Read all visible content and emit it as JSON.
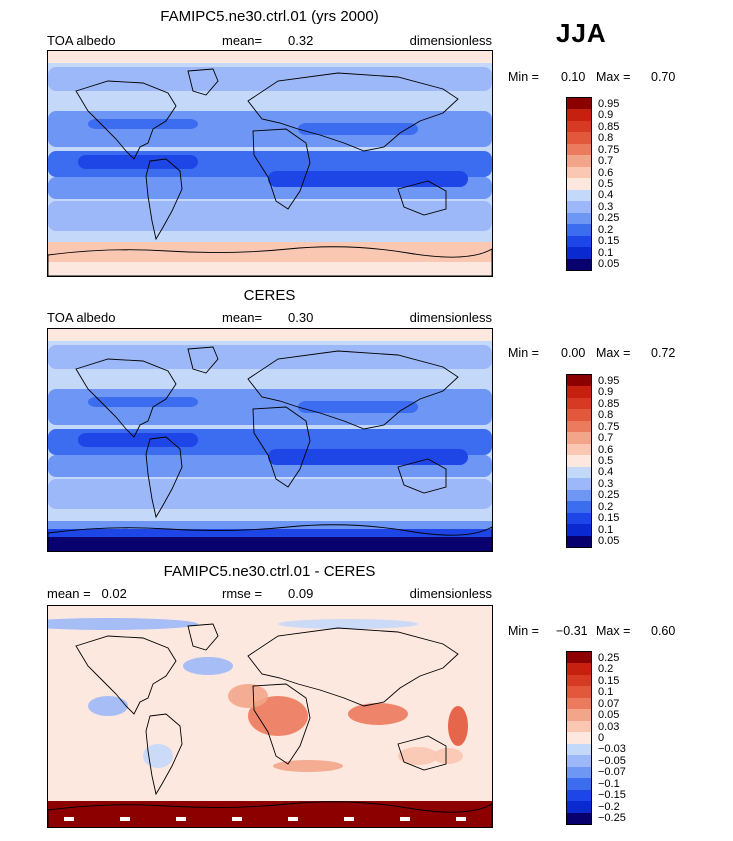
{
  "season": "JJA",
  "palettes": {
    "abs": [
      "#08006e",
      "#0a2ad0",
      "#1e46e6",
      "#3c6cf0",
      "#6e96f5",
      "#9cb8f8",
      "#c4d8fa",
      "#fde8df",
      "#f9c7b2",
      "#f3a589",
      "#ec7a5e",
      "#e3583c",
      "#d73a24",
      "#c62010",
      "#8c0000"
    ],
    "diff": [
      "#08006e",
      "#0a2ad0",
      "#1e46e6",
      "#3c6cf0",
      "#6e96f5",
      "#9cb8f8",
      "#c4d8fa",
      "#fde8df",
      "#f9c7b2",
      "#f3a589",
      "#ec7a5e",
      "#e3583c",
      "#d73a24",
      "#c62010",
      "#8c0000"
    ]
  },
  "panels": [
    {
      "title": "FAMIPC5.ne30.ctrl.01 (yrs 2000)",
      "header_left": "TOA albedo",
      "header_mid_label": "mean=",
      "header_mid_value": "0.32",
      "header_right": "dimensionless",
      "min_label": "Min =",
      "min_value": "0.10",
      "max_label": "Max =",
      "max_value": "0.70",
      "levels": [
        "0.95",
        "0.9",
        "0.85",
        "0.8",
        "0.75",
        "0.7",
        "0.6",
        "0.5",
        "0.4",
        "0.3",
        "0.25",
        "0.2",
        "0.15",
        "0.1",
        "0.05"
      ],
      "palette": "abs"
    },
    {
      "title": "CERES",
      "header_left": "TOA albedo",
      "header_mid_label": "mean=",
      "header_mid_value": "0.30",
      "header_right": "dimensionless",
      "min_label": "Min =",
      "min_value": "0.00",
      "max_label": "Max =",
      "max_value": "0.72",
      "levels": [
        "0.95",
        "0.9",
        "0.85",
        "0.8",
        "0.75",
        "0.7",
        "0.6",
        "0.5",
        "0.4",
        "0.3",
        "0.25",
        "0.2",
        "0.15",
        "0.1",
        "0.05"
      ],
      "palette": "abs"
    },
    {
      "title": "FAMIPC5.ne30.ctrl.01 - CERES",
      "header_left": "mean =   0.02",
      "header_mid_label": "rmse =",
      "header_mid_value": "0.09",
      "header_right": "dimensionless",
      "min_label": "Min =",
      "min_value": "−0.31",
      "max_label": "Max =",
      "max_value": "0.60",
      "levels": [
        "0.25",
        "0.2",
        "0.15",
        "0.1",
        "0.07",
        "0.05",
        "0.03",
        "0",
        "−0.03",
        "−0.05",
        "−0.07",
        "−0.1",
        "−0.15",
        "−0.2",
        "−0.25"
      ],
      "palette": "diff"
    }
  ]
}
